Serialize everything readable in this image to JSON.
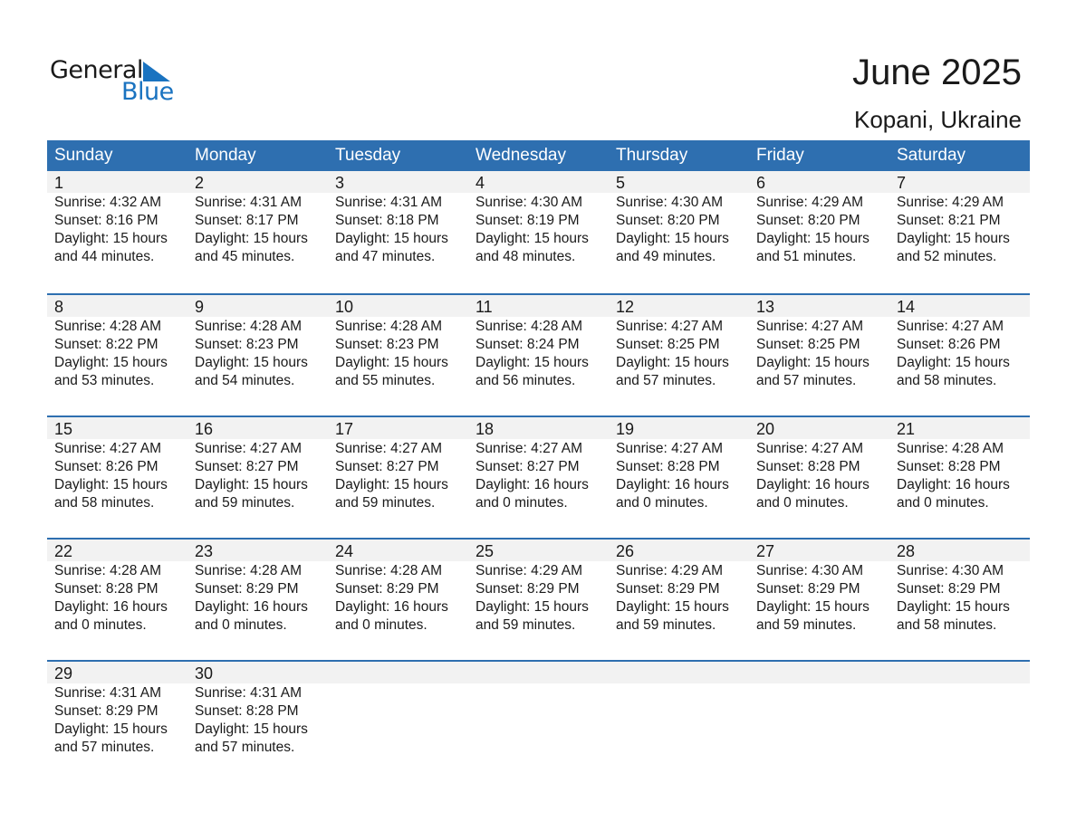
{
  "logo": {
    "line1": "General",
    "line2": "Blue"
  },
  "title": "June 2025",
  "location": "Kopani, Ukraine",
  "colors": {
    "header": "#2e6fb0",
    "date_band": "#f2f2f2",
    "logo_blue": "#1a73c0"
  },
  "weekdays": [
    "Sunday",
    "Monday",
    "Tuesday",
    "Wednesday",
    "Thursday",
    "Friday",
    "Saturday"
  ],
  "weeks": [
    [
      {
        "day": "1",
        "sunrise": "Sunrise: 4:32 AM",
        "sunset": "Sunset: 8:16 PM",
        "daylight1": "Daylight: 15 hours",
        "daylight2": "and 44 minutes."
      },
      {
        "day": "2",
        "sunrise": "Sunrise: 4:31 AM",
        "sunset": "Sunset: 8:17 PM",
        "daylight1": "Daylight: 15 hours",
        "daylight2": "and 45 minutes."
      },
      {
        "day": "3",
        "sunrise": "Sunrise: 4:31 AM",
        "sunset": "Sunset: 8:18 PM",
        "daylight1": "Daylight: 15 hours",
        "daylight2": "and 47 minutes."
      },
      {
        "day": "4",
        "sunrise": "Sunrise: 4:30 AM",
        "sunset": "Sunset: 8:19 PM",
        "daylight1": "Daylight: 15 hours",
        "daylight2": "and 48 minutes."
      },
      {
        "day": "5",
        "sunrise": "Sunrise: 4:30 AM",
        "sunset": "Sunset: 8:20 PM",
        "daylight1": "Daylight: 15 hours",
        "daylight2": "and 49 minutes."
      },
      {
        "day": "6",
        "sunrise": "Sunrise: 4:29 AM",
        "sunset": "Sunset: 8:20 PM",
        "daylight1": "Daylight: 15 hours",
        "daylight2": "and 51 minutes."
      },
      {
        "day": "7",
        "sunrise": "Sunrise: 4:29 AM",
        "sunset": "Sunset: 8:21 PM",
        "daylight1": "Daylight: 15 hours",
        "daylight2": "and 52 minutes."
      }
    ],
    [
      {
        "day": "8",
        "sunrise": "Sunrise: 4:28 AM",
        "sunset": "Sunset: 8:22 PM",
        "daylight1": "Daylight: 15 hours",
        "daylight2": "and 53 minutes."
      },
      {
        "day": "9",
        "sunrise": "Sunrise: 4:28 AM",
        "sunset": "Sunset: 8:23 PM",
        "daylight1": "Daylight: 15 hours",
        "daylight2": "and 54 minutes."
      },
      {
        "day": "10",
        "sunrise": "Sunrise: 4:28 AM",
        "sunset": "Sunset: 8:23 PM",
        "daylight1": "Daylight: 15 hours",
        "daylight2": "and 55 minutes."
      },
      {
        "day": "11",
        "sunrise": "Sunrise: 4:28 AM",
        "sunset": "Sunset: 8:24 PM",
        "daylight1": "Daylight: 15 hours",
        "daylight2": "and 56 minutes."
      },
      {
        "day": "12",
        "sunrise": "Sunrise: 4:27 AM",
        "sunset": "Sunset: 8:25 PM",
        "daylight1": "Daylight: 15 hours",
        "daylight2": "and 57 minutes."
      },
      {
        "day": "13",
        "sunrise": "Sunrise: 4:27 AM",
        "sunset": "Sunset: 8:25 PM",
        "daylight1": "Daylight: 15 hours",
        "daylight2": "and 57 minutes."
      },
      {
        "day": "14",
        "sunrise": "Sunrise: 4:27 AM",
        "sunset": "Sunset: 8:26 PM",
        "daylight1": "Daylight: 15 hours",
        "daylight2": "and 58 minutes."
      }
    ],
    [
      {
        "day": "15",
        "sunrise": "Sunrise: 4:27 AM",
        "sunset": "Sunset: 8:26 PM",
        "daylight1": "Daylight: 15 hours",
        "daylight2": "and 58 minutes."
      },
      {
        "day": "16",
        "sunrise": "Sunrise: 4:27 AM",
        "sunset": "Sunset: 8:27 PM",
        "daylight1": "Daylight: 15 hours",
        "daylight2": "and 59 minutes."
      },
      {
        "day": "17",
        "sunrise": "Sunrise: 4:27 AM",
        "sunset": "Sunset: 8:27 PM",
        "daylight1": "Daylight: 15 hours",
        "daylight2": "and 59 minutes."
      },
      {
        "day": "18",
        "sunrise": "Sunrise: 4:27 AM",
        "sunset": "Sunset: 8:27 PM",
        "daylight1": "Daylight: 16 hours",
        "daylight2": "and 0 minutes."
      },
      {
        "day": "19",
        "sunrise": "Sunrise: 4:27 AM",
        "sunset": "Sunset: 8:28 PM",
        "daylight1": "Daylight: 16 hours",
        "daylight2": "and 0 minutes."
      },
      {
        "day": "20",
        "sunrise": "Sunrise: 4:27 AM",
        "sunset": "Sunset: 8:28 PM",
        "daylight1": "Daylight: 16 hours",
        "daylight2": "and 0 minutes."
      },
      {
        "day": "21",
        "sunrise": "Sunrise: 4:28 AM",
        "sunset": "Sunset: 8:28 PM",
        "daylight1": "Daylight: 16 hours",
        "daylight2": "and 0 minutes."
      }
    ],
    [
      {
        "day": "22",
        "sunrise": "Sunrise: 4:28 AM",
        "sunset": "Sunset: 8:28 PM",
        "daylight1": "Daylight: 16 hours",
        "daylight2": "and 0 minutes."
      },
      {
        "day": "23",
        "sunrise": "Sunrise: 4:28 AM",
        "sunset": "Sunset: 8:29 PM",
        "daylight1": "Daylight: 16 hours",
        "daylight2": "and 0 minutes."
      },
      {
        "day": "24",
        "sunrise": "Sunrise: 4:28 AM",
        "sunset": "Sunset: 8:29 PM",
        "daylight1": "Daylight: 16 hours",
        "daylight2": "and 0 minutes."
      },
      {
        "day": "25",
        "sunrise": "Sunrise: 4:29 AM",
        "sunset": "Sunset: 8:29 PM",
        "daylight1": "Daylight: 15 hours",
        "daylight2": "and 59 minutes."
      },
      {
        "day": "26",
        "sunrise": "Sunrise: 4:29 AM",
        "sunset": "Sunset: 8:29 PM",
        "daylight1": "Daylight: 15 hours",
        "daylight2": "and 59 minutes."
      },
      {
        "day": "27",
        "sunrise": "Sunrise: 4:30 AM",
        "sunset": "Sunset: 8:29 PM",
        "daylight1": "Daylight: 15 hours",
        "daylight2": "and 59 minutes."
      },
      {
        "day": "28",
        "sunrise": "Sunrise: 4:30 AM",
        "sunset": "Sunset: 8:29 PM",
        "daylight1": "Daylight: 15 hours",
        "daylight2": "and 58 minutes."
      }
    ],
    [
      {
        "day": "29",
        "sunrise": "Sunrise: 4:31 AM",
        "sunset": "Sunset: 8:29 PM",
        "daylight1": "Daylight: 15 hours",
        "daylight2": "and 57 minutes."
      },
      {
        "day": "30",
        "sunrise": "Sunrise: 4:31 AM",
        "sunset": "Sunset: 8:28 PM",
        "daylight1": "Daylight: 15 hours",
        "daylight2": "and 57 minutes."
      },
      null,
      null,
      null,
      null,
      null
    ]
  ]
}
